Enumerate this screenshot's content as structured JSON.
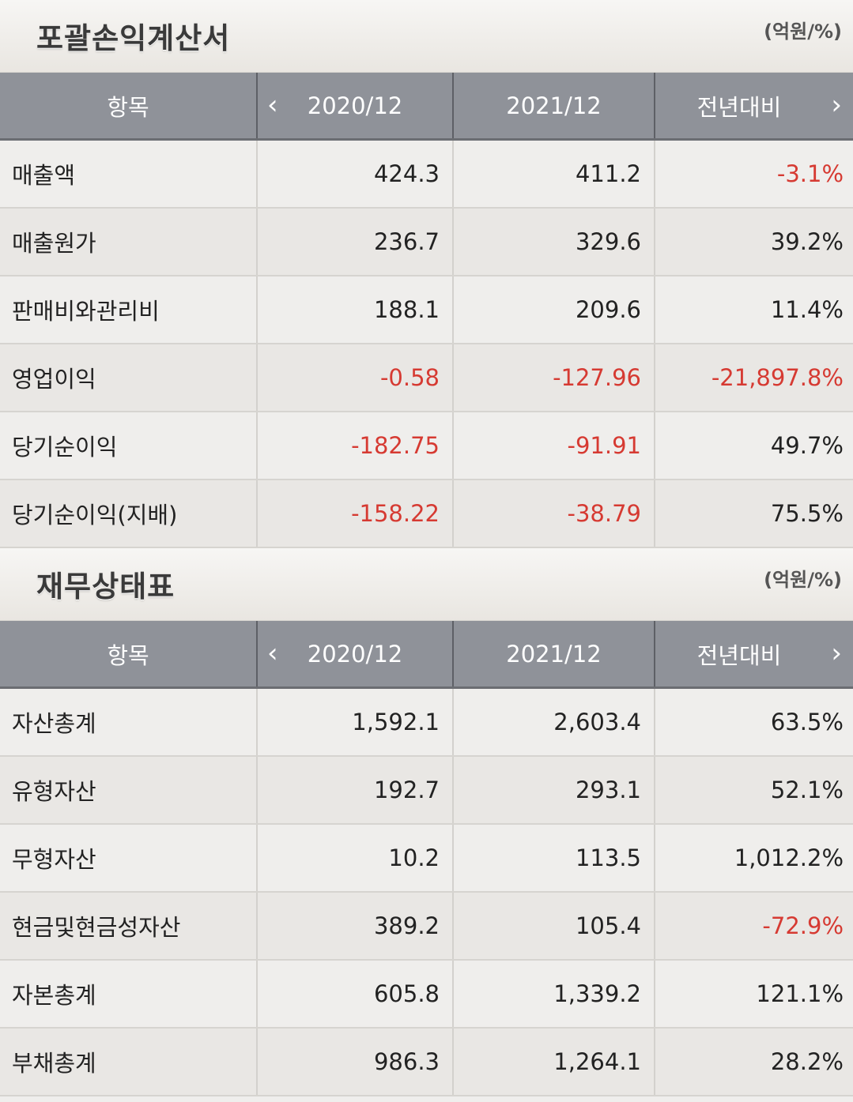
{
  "colors": {
    "header_bg": "#8f9299",
    "negative": "#d63a32",
    "row_bg": "#efeeec"
  },
  "income": {
    "title": "포괄손익계산서",
    "unit": "(억원/%)",
    "headers": {
      "item": "항목",
      "y1": "2020/12",
      "y2": "2021/12",
      "yoy": "전년대비",
      "prev_icon": "chevron-left-icon",
      "next_icon": "chevron-right-icon"
    },
    "rows": [
      {
        "label": "매출액",
        "y1": "424.3",
        "y2": "411.2",
        "yoy": "-3.1%",
        "neg": [
          false,
          false,
          true
        ]
      },
      {
        "label": "매출원가",
        "y1": "236.7",
        "y2": "329.6",
        "yoy": "39.2%",
        "neg": [
          false,
          false,
          false
        ]
      },
      {
        "label": "판매비와관리비",
        "y1": "188.1",
        "y2": "209.6",
        "yoy": "11.4%",
        "neg": [
          false,
          false,
          false
        ]
      },
      {
        "label": "영업이익",
        "y1": "-0.58",
        "y2": "-127.96",
        "yoy": "-21,897.8%",
        "neg": [
          true,
          true,
          true
        ]
      },
      {
        "label": "당기순이익",
        "y1": "-182.75",
        "y2": "-91.91",
        "yoy": "49.7%",
        "neg": [
          true,
          true,
          false
        ]
      },
      {
        "label": "당기순이익(지배)",
        "y1": "-158.22",
        "y2": "-38.79",
        "yoy": "75.5%",
        "neg": [
          true,
          true,
          false
        ]
      }
    ]
  },
  "balance": {
    "title": "재무상태표",
    "unit": "(억원/%)",
    "headers": {
      "item": "항목",
      "y1": "2020/12",
      "y2": "2021/12",
      "yoy": "전년대비",
      "prev_icon": "chevron-left-icon",
      "next_icon": "chevron-right-icon"
    },
    "rows": [
      {
        "label": "자산총계",
        "y1": "1,592.1",
        "y2": "2,603.4",
        "yoy": "63.5%",
        "neg": [
          false,
          false,
          false
        ]
      },
      {
        "label": "유형자산",
        "y1": "192.7",
        "y2": "293.1",
        "yoy": "52.1%",
        "neg": [
          false,
          false,
          false
        ]
      },
      {
        "label": "무형자산",
        "y1": "10.2",
        "y2": "113.5",
        "yoy": "1,012.2%",
        "neg": [
          false,
          false,
          false
        ]
      },
      {
        "label": "현금및현금성자산",
        "y1": "389.2",
        "y2": "105.4",
        "yoy": "-72.9%",
        "neg": [
          false,
          false,
          true
        ]
      },
      {
        "label": "자본총계",
        "y1": "605.8",
        "y2": "1,339.2",
        "yoy": "121.1%",
        "neg": [
          false,
          false,
          false
        ]
      },
      {
        "label": "부채총계",
        "y1": "986.3",
        "y2": "1,264.1",
        "yoy": "28.2%",
        "neg": [
          false,
          false,
          false
        ]
      }
    ]
  }
}
